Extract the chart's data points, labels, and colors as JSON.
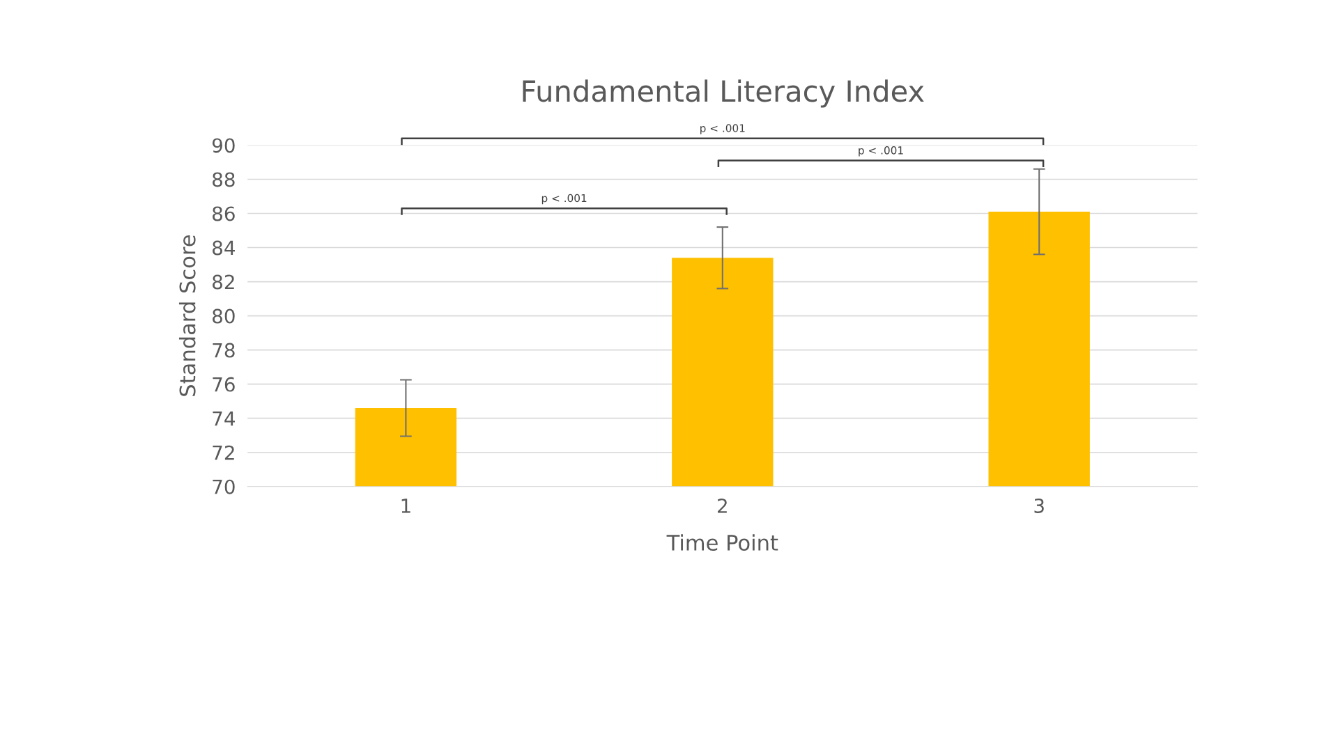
{
  "chart_data": {
    "type": "bar",
    "title": "Fundamental Literacy Index",
    "xlabel": "Time Point",
    "ylabel": "Standard Score",
    "categories": [
      "1",
      "2",
      "3"
    ],
    "values": [
      74.6,
      83.4,
      86.1
    ],
    "errors": [
      1.65,
      1.8,
      2.5
    ],
    "color": "#ffc000",
    "ylim": [
      70,
      90
    ],
    "yticks": [
      70,
      72,
      74,
      76,
      78,
      80,
      82,
      84,
      86,
      88,
      90
    ],
    "grid": "y",
    "annotations": [
      "p < .001",
      "p < .001",
      "p < .001"
    ]
  }
}
